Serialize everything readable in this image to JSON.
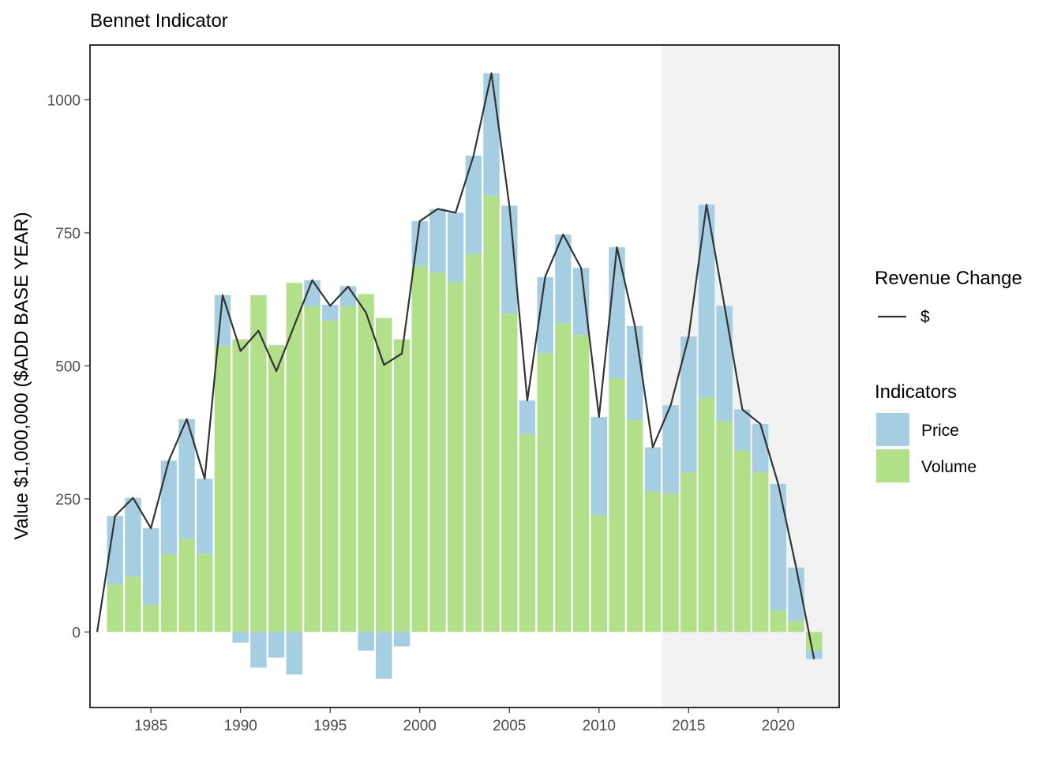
{
  "chart_data": {
    "type": "bar",
    "title": "Bennet Indicator",
    "xlabel": "",
    "ylabel": "Value $1,000,000  ($ADD BASE YEAR)",
    "xlim": [
      1981.6,
      2023.4
    ],
    "ylim": [
      -142,
      1103
    ],
    "x_ticks": [
      1985,
      1990,
      1995,
      2000,
      2005,
      2010,
      2015,
      2020
    ],
    "y_ticks": [
      0,
      250,
      500,
      750,
      1000
    ],
    "shaded_region": {
      "start": 2013.5,
      "end": 2023.4,
      "color": "#f2f2f2"
    },
    "stacking": "positive values stack upward, negative values stack downward (Volume first, then Price)",
    "years": [
      1983,
      1984,
      1985,
      1986,
      1987,
      1988,
      1989,
      1990,
      1991,
      1992,
      1993,
      1994,
      1995,
      1996,
      1997,
      1998,
      1999,
      2000,
      2001,
      2002,
      2003,
      2004,
      2005,
      2006,
      2007,
      2008,
      2009,
      2010,
      2011,
      2012,
      2013,
      2014,
      2015,
      2016,
      2017,
      2018,
      2019,
      2020,
      2021,
      2022
    ],
    "series": [
      {
        "name": "Volume",
        "color": "#b2df8a",
        "values": [
          90,
          104,
          51,
          146,
          175,
          147,
          538,
          550,
          633,
          539,
          656,
          612,
          585,
          612,
          635,
          590,
          550,
          688,
          676,
          657,
          710,
          820,
          598,
          372,
          524,
          580,
          558,
          220,
          476,
          398,
          264,
          260,
          300,
          440,
          396,
          341,
          300,
          40,
          20,
          -35
        ]
      },
      {
        "name": "Price",
        "color": "#a6cee3",
        "values": [
          128,
          148,
          144,
          176,
          225,
          141,
          95,
          -20,
          -67,
          -48,
          -80,
          49,
          30,
          38,
          -35,
          -88,
          -27,
          84,
          119,
          131,
          185,
          230,
          203,
          63,
          143,
          167,
          126,
          184,
          247,
          177,
          83,
          166,
          255,
          363,
          217,
          77,
          91,
          238,
          101,
          -16
        ]
      }
    ],
    "line_series": {
      "name": "$",
      "color": "#333333",
      "x": [
        1982,
        1983,
        1984,
        1985,
        1986,
        1987,
        1988,
        1989,
        1990,
        1991,
        1992,
        1993,
        1994,
        1995,
        1996,
        1997,
        1998,
        1999,
        2000,
        2001,
        2002,
        2003,
        2004,
        2005,
        2006,
        2007,
        2008,
        2009,
        2010,
        2011,
        2012,
        2013,
        2014,
        2015,
        2016,
        2017,
        2018,
        2019,
        2020,
        2021,
        2022
      ],
      "values": [
        0,
        218,
        252,
        195,
        322,
        400,
        288,
        633,
        528,
        566,
        490,
        576,
        661,
        613,
        649,
        600,
        502,
        523,
        772,
        795,
        788,
        895,
        1050,
        801,
        435,
        668,
        747,
        684,
        404,
        723,
        575,
        347,
        426,
        555,
        803,
        613,
        418,
        391,
        278,
        121,
        -51
      ]
    },
    "legend": {
      "placement": "right",
      "line_title": "Revenue Change",
      "line_label": "$",
      "fill_title": "Indicators",
      "fill_items": [
        {
          "label": "Price",
          "color": "#a6cee3"
        },
        {
          "label": "Volume",
          "color": "#b2df8a"
        }
      ]
    }
  }
}
